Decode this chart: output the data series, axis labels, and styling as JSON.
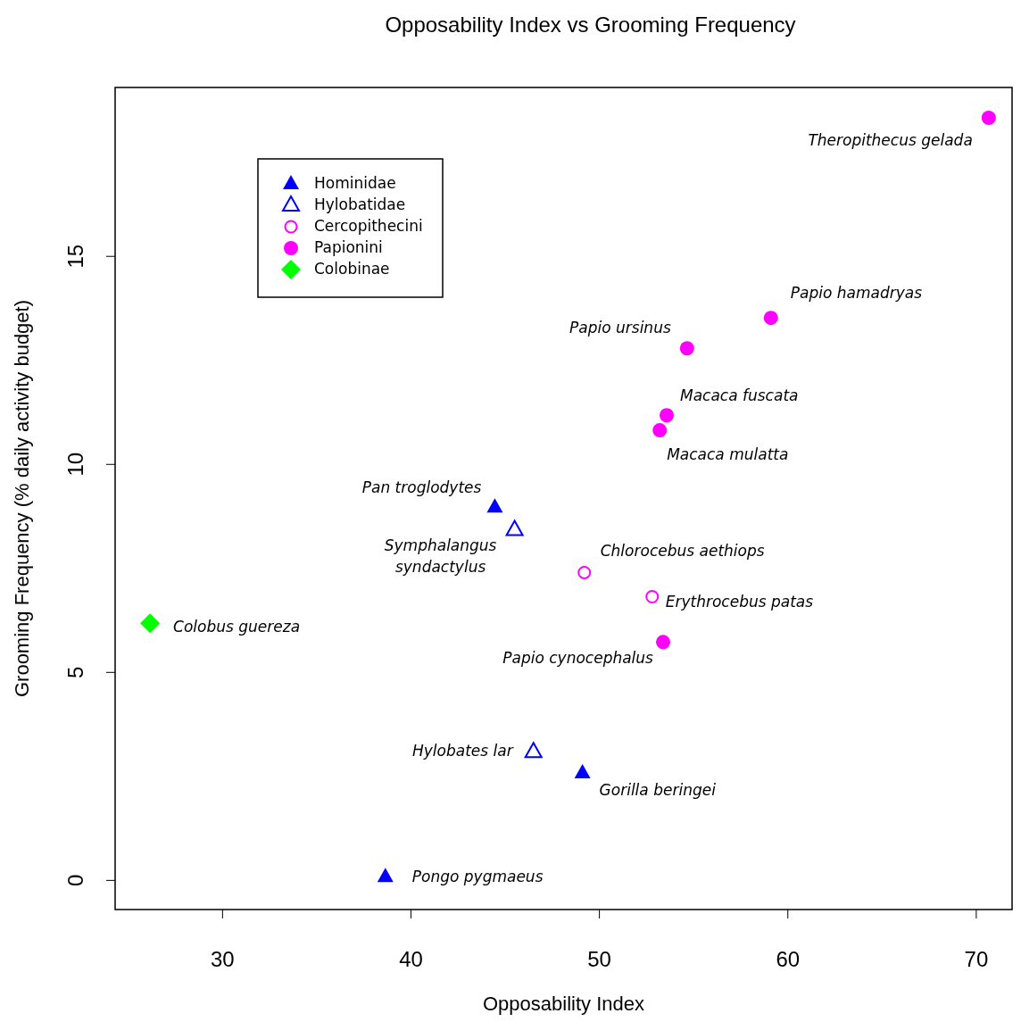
{
  "chart_data": {
    "type": "scatter",
    "title": "Opposability Index vs Grooming Frequency",
    "xlabel": "Opposability Index",
    "ylabel": "Grooming Frequency (% daily activity budget)",
    "xlim": [
      24.3,
      71.9
    ],
    "ylim": [
      -0.7,
      19.06
    ],
    "xticks": [
      30,
      40,
      50,
      60,
      70
    ],
    "yticks": [
      0,
      5,
      10,
      15
    ],
    "grid": false,
    "legend": "top left",
    "series": [
      {
        "name": "Hominidae",
        "color": "#0000ff",
        "marker": "triangle",
        "x": [
          44.45,
          49.1,
          38.64
        ],
        "values": [
          8.97,
          2.58,
          0.09
        ]
      },
      {
        "name": "Hylobatidae",
        "color": "#0000ff",
        "marker": "triangle-open",
        "x": [
          45.5,
          46.5
        ],
        "values": [
          8.43,
          3.09
        ]
      },
      {
        "name": "Cercopithecini",
        "color": "#ff00ff",
        "marker": "circle-open",
        "x": [
          49.2,
          52.8
        ],
        "values": [
          7.4,
          6.82
        ]
      },
      {
        "name": "Papionini",
        "color": "#ff00ff",
        "marker": "circle",
        "x": [
          70.66,
          59.1,
          54.65,
          53.57,
          53.2,
          53.38
        ],
        "values": [
          18.33,
          13.52,
          12.79,
          11.18,
          10.82,
          5.73
        ]
      },
      {
        "name": "Colobinae",
        "color": "#00ff00",
        "marker": "diamond",
        "x": [
          26.15
        ],
        "values": [
          6.18
        ]
      }
    ],
    "annotations": [
      {
        "text": "Theropithecus gelada",
        "x": 70.66,
        "y": 18.33
      },
      {
        "text": "Papio hamadryas",
        "x": 59.1,
        "y": 13.52
      },
      {
        "text": "Papio ursinus",
        "x": 54.65,
        "y": 12.79
      },
      {
        "text": "Macaca fuscata",
        "x": 53.57,
        "y": 11.18
      },
      {
        "text": "Macaca mulatta",
        "x": 53.2,
        "y": 10.82
      },
      {
        "text": "Pan troglodytes",
        "x": 44.45,
        "y": 8.97
      },
      {
        "text": "Symphalangus\nsyndactylus",
        "x": 45.5,
        "y": 8.43
      },
      {
        "text": "Chlorocebus aethiops",
        "x": 49.2,
        "y": 7.4
      },
      {
        "text": "Erythrocebus patas",
        "x": 52.8,
        "y": 6.82
      },
      {
        "text": "Papio cynocephalus",
        "x": 53.38,
        "y": 5.73
      },
      {
        "text": "Colobus guereza",
        "x": 26.15,
        "y": 6.18
      },
      {
        "text": "Hylobates lar",
        "x": 46.5,
        "y": 3.09
      },
      {
        "text": "Gorilla beringei",
        "x": 49.1,
        "y": 2.58
      },
      {
        "text": "Pongo pygmaeus",
        "x": 38.64,
        "y": 0.09
      }
    ]
  }
}
